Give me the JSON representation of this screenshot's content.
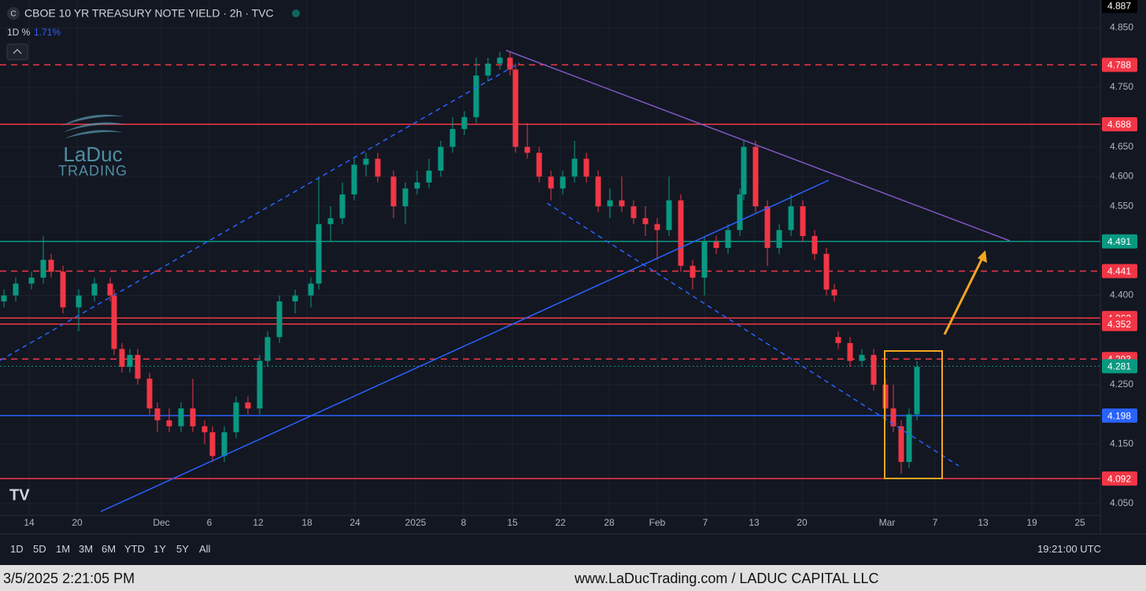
{
  "chart_data": {
    "type": "candlestick",
    "title": "CBOE 10 YR TREASURY NOTE YIELD · 2h · TVC",
    "change_label": "1D %",
    "change_value": "1.71%",
    "logo": {
      "name": "LaDuc",
      "sub": "TRADING"
    },
    "xlim": [
      0,
      139.8
    ],
    "ylim": [
      4.03,
      4.897
    ],
    "xticks": [
      {
        "value": 3.7,
        "label": "14"
      },
      {
        "value": 9.8,
        "label": "20"
      },
      {
        "value": 20.5,
        "label": "Dec"
      },
      {
        "value": 26.6,
        "label": "6"
      },
      {
        "value": 32.8,
        "label": "12"
      },
      {
        "value": 39.0,
        "label": "18"
      },
      {
        "value": 45.1,
        "label": "24"
      },
      {
        "value": 52.8,
        "label": "2025"
      },
      {
        "value": 58.9,
        "label": "8"
      },
      {
        "value": 65.1,
        "label": "15"
      },
      {
        "value": 71.2,
        "label": "22"
      },
      {
        "value": 77.4,
        "label": "28"
      },
      {
        "value": 83.5,
        "label": "Feb"
      },
      {
        "value": 89.6,
        "label": "7"
      },
      {
        "value": 95.8,
        "label": "13"
      },
      {
        "value": 101.9,
        "label": "20"
      },
      {
        "value": 112.7,
        "label": "Mar"
      },
      {
        "value": 118.8,
        "label": "7"
      },
      {
        "value": 124.9,
        "label": "13"
      },
      {
        "value": 131.1,
        "label": "19"
      },
      {
        "value": 137.2,
        "label": "25"
      }
    ],
    "yticks": [
      {
        "value": 4.85,
        "label": "4.850"
      },
      {
        "value": 4.75,
        "label": "4.750"
      },
      {
        "value": 4.65,
        "label": "4.650"
      },
      {
        "value": 4.6,
        "label": "4.600"
      },
      {
        "value": 4.55,
        "label": "4.550"
      },
      {
        "value": 4.4,
        "label": "4.400"
      },
      {
        "value": 4.25,
        "label": "4.250"
      },
      {
        "value": 4.15,
        "label": "4.150"
      },
      {
        "value": 4.05,
        "label": "4.050"
      }
    ],
    "up_color": "#089981",
    "down_color": "#f23645",
    "x": [
      0.5,
      2.0,
      4.0,
      5.5,
      6.5,
      8.0,
      10.0,
      12.0,
      14.0,
      14.5,
      15.5,
      16.5,
      17.5,
      19.0,
      20.0,
      21.5,
      23.0,
      24.5,
      26.0,
      27.0,
      28.5,
      30.0,
      31.5,
      33.0,
      34.0,
      35.5,
      37.5,
      39.5,
      40.5,
      42.0,
      43.5,
      45.0,
      46.5,
      48.0,
      50.0,
      51.5,
      53.0,
      54.5,
      56.0,
      57.5,
      59.0,
      60.5,
      62.0,
      63.5,
      64.8,
      65.5,
      67.0,
      68.5,
      70.0,
      71.5,
      73.0,
      74.5,
      76.0,
      77.5,
      79.0,
      80.5,
      82.0,
      83.5,
      85.0,
      86.5,
      88.0,
      89.5,
      91.0,
      92.5,
      94.0,
      94.5,
      96.0,
      97.5,
      99.0,
      100.5,
      102.0,
      103.5,
      105.0,
      106.0,
      106.5,
      108.0,
      109.5,
      111.0,
      112.5,
      113.5,
      114.5,
      115.5,
      116.5
    ],
    "open": [
      4.39,
      4.4,
      4.42,
      4.43,
      4.46,
      4.44,
      4.38,
      4.4,
      4.42,
      4.4,
      4.31,
      4.28,
      4.3,
      4.26,
      4.21,
      4.19,
      4.18,
      4.21,
      4.18,
      4.17,
      4.13,
      4.17,
      4.22,
      4.21,
      4.29,
      4.33,
      4.39,
      4.4,
      4.42,
      4.52,
      4.53,
      4.57,
      4.62,
      4.63,
      4.6,
      4.55,
      4.58,
      4.59,
      4.61,
      4.65,
      4.68,
      4.7,
      4.77,
      4.79,
      4.8,
      4.78,
      4.65,
      4.64,
      4.6,
      4.58,
      4.6,
      4.63,
      4.6,
      4.55,
      4.56,
      4.55,
      4.53,
      4.52,
      4.51,
      4.56,
      4.45,
      4.43,
      4.49,
      4.48,
      4.51,
      4.57,
      4.65,
      4.55,
      4.48,
      4.51,
      4.55,
      4.5,
      4.47,
      4.41,
      4.33,
      4.32,
      4.29,
      4.3,
      4.25,
      4.21,
      4.18,
      4.12,
      4.2
    ],
    "high": [
      4.41,
      4.43,
      4.44,
      4.5,
      4.47,
      4.45,
      4.41,
      4.43,
      4.43,
      4.41,
      4.32,
      4.31,
      4.31,
      4.27,
      4.22,
      4.21,
      4.22,
      4.26,
      4.19,
      4.18,
      4.18,
      4.23,
      4.23,
      4.3,
      4.34,
      4.4,
      4.41,
      4.43,
      4.6,
      4.55,
      4.59,
      4.63,
      4.64,
      4.64,
      4.61,
      4.59,
      4.61,
      4.63,
      4.66,
      4.7,
      4.71,
      4.8,
      4.8,
      4.81,
      4.81,
      4.79,
      4.69,
      4.65,
      4.61,
      4.61,
      4.66,
      4.64,
      4.61,
      4.58,
      4.6,
      4.56,
      4.55,
      4.53,
      4.6,
      4.57,
      4.46,
      4.5,
      4.5,
      4.52,
      4.58,
      4.66,
      4.66,
      4.56,
      4.52,
      4.57,
      4.56,
      4.51,
      4.48,
      4.42,
      4.34,
      4.33,
      4.31,
      4.31,
      4.26,
      4.25,
      4.19,
      4.21,
      4.29
    ],
    "low": [
      4.38,
      4.39,
      4.41,
      4.42,
      4.43,
      4.37,
      4.34,
      4.39,
      4.39,
      4.3,
      4.27,
      4.27,
      4.25,
      4.2,
      4.17,
      4.17,
      4.17,
      4.17,
      4.15,
      4.12,
      4.12,
      4.16,
      4.2,
      4.2,
      4.28,
      4.32,
      4.37,
      4.38,
      4.41,
      4.49,
      4.52,
      4.56,
      4.6,
      4.59,
      4.53,
      4.52,
      4.57,
      4.58,
      4.6,
      4.64,
      4.67,
      4.69,
      4.76,
      4.78,
      4.77,
      4.64,
      4.63,
      4.59,
      4.56,
      4.57,
      4.59,
      4.59,
      4.54,
      4.53,
      4.54,
      4.52,
      4.5,
      4.46,
      4.5,
      4.44,
      4.41,
      4.4,
      4.47,
      4.47,
      4.5,
      4.56,
      4.54,
      4.45,
      4.47,
      4.5,
      4.49,
      4.46,
      4.4,
      4.39,
      4.31,
      4.28,
      4.28,
      4.24,
      4.19,
      4.17,
      4.1,
      4.11,
      4.19
    ],
    "close": [
      4.4,
      4.42,
      4.43,
      4.46,
      4.44,
      4.38,
      4.4,
      4.42,
      4.4,
      4.31,
      4.28,
      4.3,
      4.26,
      4.21,
      4.19,
      4.18,
      4.21,
      4.18,
      4.17,
      4.13,
      4.17,
      4.22,
      4.21,
      4.29,
      4.33,
      4.39,
      4.4,
      4.42,
      4.52,
      4.53,
      4.57,
      4.62,
      4.63,
      4.6,
      4.55,
      4.58,
      4.59,
      4.61,
      4.65,
      4.68,
      4.7,
      4.77,
      4.79,
      4.8,
      4.78,
      4.65,
      4.64,
      4.6,
      4.58,
      4.6,
      4.63,
      4.6,
      4.55,
      4.56,
      4.55,
      4.53,
      4.52,
      4.51,
      4.56,
      4.45,
      4.43,
      4.49,
      4.48,
      4.51,
      4.57,
      4.65,
      4.55,
      4.48,
      4.51,
      4.55,
      4.5,
      4.47,
      4.41,
      4.4,
      4.32,
      4.29,
      4.3,
      4.25,
      4.21,
      4.18,
      4.12,
      4.2,
      4.28
    ],
    "price_lines": [
      {
        "value": 4.887,
        "color": "#000000",
        "style": "none"
      },
      {
        "value": 4.788,
        "color": "#f23645",
        "style": "dashed"
      },
      {
        "value": 4.688,
        "color": "#f23645",
        "style": "solid"
      },
      {
        "value": 4.491,
        "color": "#089981",
        "style": "solid"
      },
      {
        "value": 4.441,
        "color": "#f23645",
        "style": "dashed"
      },
      {
        "value": 4.362,
        "color": "#f23645",
        "style": "solid"
      },
      {
        "value": 4.352,
        "color": "#f23645",
        "style": "solid"
      },
      {
        "value": 4.293,
        "color": "#f23645",
        "style": "dashed"
      },
      {
        "value": 4.281,
        "color": "#089981",
        "style": "dotted"
      },
      {
        "value": 4.198,
        "color": "#2962ff",
        "style": "solid"
      },
      {
        "value": 4.092,
        "color": "#f23645",
        "style": "solid"
      }
    ]
  },
  "toolbar": {
    "ranges": [
      "1D",
      "5D",
      "1M",
      "3M",
      "6M",
      "YTD",
      "1Y",
      "5Y",
      "All"
    ],
    "clock": "19:21:00 UTC"
  },
  "footer": {
    "timestamp": "3/5/2025 2:21:05 PM",
    "credit": "www.LaDucTrading.com / LADUC CAPITAL LLC"
  }
}
